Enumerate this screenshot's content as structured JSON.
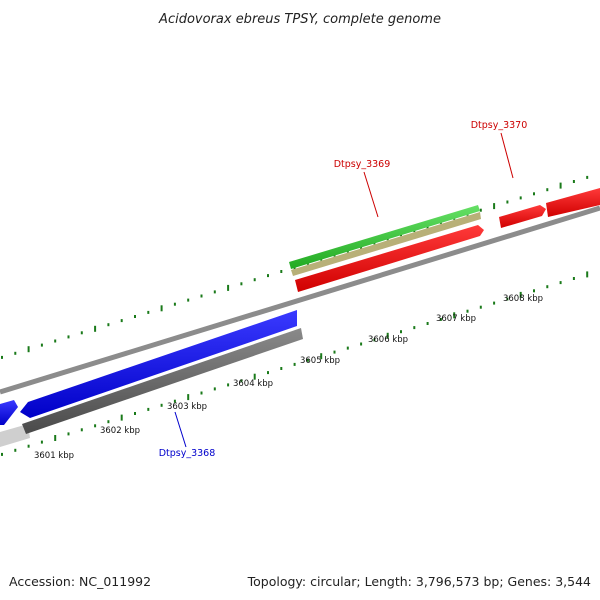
{
  "title": "Acidovorax ebreus TPSY, complete genome",
  "footer": {
    "accession": "Accession: NC_011992",
    "summary": "Topology: circular; Length: 3,796,573 bp; Genes: 3,544"
  },
  "ruler": {
    "labels": [
      "3601 kbp",
      "3602 kbp",
      "3603 kbp",
      "3604 kbp",
      "3605 kbp",
      "3606 kbp",
      "3607 kbp",
      "3608 kbp"
    ]
  },
  "genes": [
    {
      "name": "Dtpsy_3368",
      "color": "#0000cc"
    },
    {
      "name": "Dtpsy_3369",
      "color": "#cc0000"
    },
    {
      "name": "Dtpsy_3370",
      "color": "#cc0000"
    }
  ],
  "colors": {
    "backbone": "#8c8c8c",
    "ticks": "#1a7a1a",
    "blue_feature": "#0000ee",
    "red_feature": "#ee0000",
    "green_feature": "#33cc33",
    "tan_feature": "#b8b078",
    "gray_feature": "#666666",
    "light_gray_feature": "#cccccc"
  }
}
